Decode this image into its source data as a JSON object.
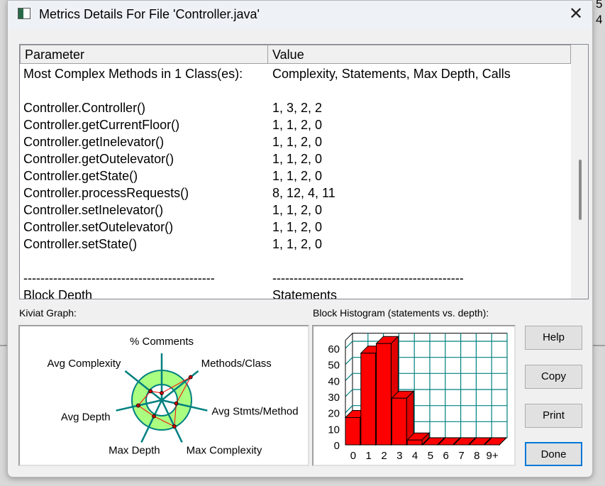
{
  "window": {
    "title": "Metrics Details For File 'Controller.java'",
    "close_icon": "close-icon",
    "app_icon": "window-icon"
  },
  "side_text": [
    "5",
    "4"
  ],
  "table": {
    "headers": [
      "Parameter",
      "Value"
    ],
    "rows": [
      [
        "Most Complex Methods in 1 Class(es):",
        "Complexity, Statements, Max Depth, Calls"
      ],
      [
        "",
        ""
      ],
      [
        "Controller.Controller()",
        "1, 3, 2, 2"
      ],
      [
        "Controller.getCurrentFloor()",
        "1, 1, 2, 0"
      ],
      [
        "Controller.getInelevator()",
        "1, 1, 2, 0"
      ],
      [
        "Controller.getOutelevator()",
        "1, 1, 2, 0"
      ],
      [
        "Controller.getState()",
        "1, 1, 2, 0"
      ],
      [
        "Controller.processRequests()",
        "8, 12, 4, 11"
      ],
      [
        "Controller.setInelevator()",
        "1, 1, 2, 0"
      ],
      [
        "Controller.setOutelevator()",
        "1, 1, 2, 0"
      ],
      [
        "Controller.setState()",
        "1, 1, 2, 0"
      ],
      [
        "",
        ""
      ],
      [
        "---------------------------------------------",
        "---------------------------------------------"
      ],
      [
        "Block Depth",
        "Statements"
      ]
    ]
  },
  "kiviat": {
    "label": "Kiviat Graph:"
  },
  "histogram": {
    "label": "Block Histogram (statements vs. depth):"
  },
  "buttons": {
    "help": "Help",
    "copy": "Copy",
    "print": "Print",
    "done": "Done"
  },
  "chart_data": [
    {
      "type": "radar",
      "axes": [
        "% Comments",
        "Methods/Class",
        "Avg Stmts/Method",
        "Max Complexity",
        "Max Depth",
        "Avg Depth",
        "Avg Complexity"
      ],
      "values": [
        0.24,
        1.24,
        0.5,
        0.98,
        0.6,
        0.81,
        0.48
      ],
      "colors": {
        "ring": "#aaff80",
        "axis": "#008080",
        "series": "#ff0000"
      }
    },
    {
      "type": "bar",
      "categories": [
        "0",
        "1",
        "2",
        "3",
        "4",
        "5",
        "6",
        "7",
        "8",
        "9+"
      ],
      "values": [
        17,
        57,
        63,
        29,
        3,
        0,
        0,
        0,
        0,
        0
      ],
      "ylim": [
        0,
        65
      ],
      "yticks": [
        0,
        10,
        20,
        30,
        40,
        50,
        60
      ],
      "grid": true,
      "colors": {
        "bar": "#ff0000",
        "grid": "#008080"
      }
    }
  ]
}
